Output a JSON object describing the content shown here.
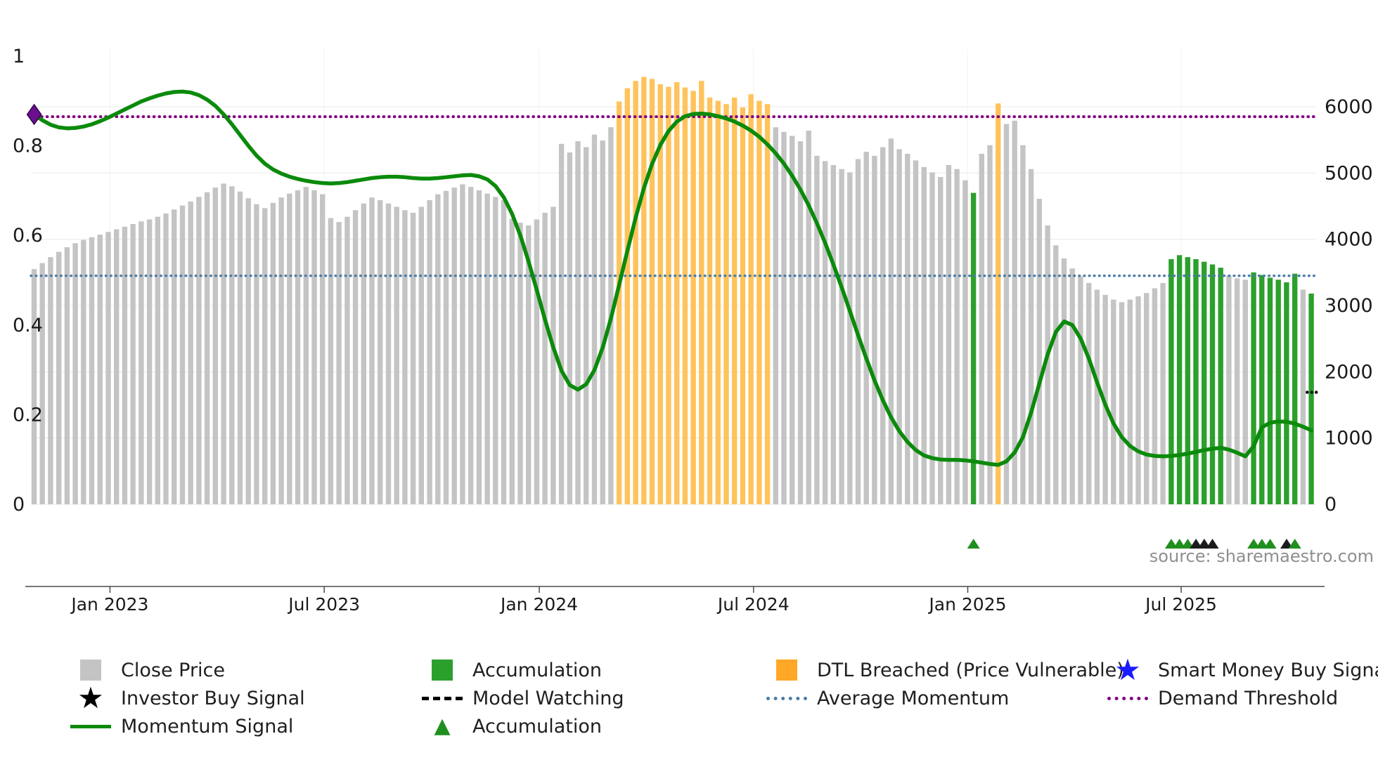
{
  "source_text": "source: sharemaestro.com",
  "colors": {
    "bar_gray": "#c4c4c4",
    "bar_green": "#2ca02c",
    "bar_orange": "#ffc35c",
    "bar_orange_legend": "#ffa726",
    "momentum_line": "#0b8a0b",
    "avg_momentum": "#4a7da8",
    "demand_threshold": "#800080",
    "diamond": "#6a0f8e",
    "diamond_edge": "#38064e",
    "triangle_green": "#1f8f1f",
    "triangle_black": "#1c1c1c",
    "star_blue": "#1a1aff",
    "star_black": "#000000",
    "axis_text": "#1a1a1a",
    "spine": "#4a4a4a",
    "grid_h": "#e9e9e9",
    "grid_v": "#f3f3f3",
    "mark_black": "#111111"
  },
  "chart_data": {
    "type": "bar",
    "overlay": "line",
    "x_unit": "weekly",
    "x_tick_labels": [
      "Jan 2023",
      "Jul 2023",
      "Jan 2024",
      "Jul 2024",
      "Jan 2025",
      "Jul 2025"
    ],
    "x_tick_weeks": [
      9.2,
      35.2,
      61.3,
      87.3,
      113.3,
      139.2
    ],
    "left_axis": {
      "series": "momentum",
      "ticks": [
        0,
        0.2,
        0.4,
        0.6,
        0.8,
        1
      ],
      "range": [
        0,
        1.09
      ]
    },
    "right_axis": {
      "series": "close_price",
      "ticks": [
        0,
        1000,
        2000,
        3000,
        4000,
        5000,
        6000
      ],
      "range": [
        0,
        6000
      ]
    },
    "close_prices": [
      3550,
      3640,
      3730,
      3810,
      3880,
      3940,
      3990,
      4030,
      4070,
      4110,
      4150,
      4190,
      4230,
      4270,
      4300,
      4340,
      4390,
      4450,
      4510,
      4570,
      4640,
      4710,
      4780,
      4840,
      4800,
      4720,
      4620,
      4530,
      4470,
      4550,
      4630,
      4690,
      4740,
      4790,
      4740,
      4680,
      4320,
      4260,
      4340,
      4440,
      4540,
      4630,
      4590,
      4540,
      4490,
      4440,
      4400,
      4490,
      4590,
      4680,
      4730,
      4780,
      4830,
      4790,
      4740,
      4690,
      4640,
      4590,
      4310,
      4250,
      4210,
      4300,
      4400,
      4490,
      5440,
      5310,
      5480,
      5390,
      5580,
      5490,
      5690,
      6080,
      6280,
      6390,
      6450,
      6420,
      6340,
      6300,
      6370,
      6290,
      6240,
      6390,
      6140,
      6090,
      6040,
      6140,
      5990,
      6190,
      6090,
      6040,
      5690,
      5620,
      5560,
      5480,
      5640,
      5260,
      5180,
      5120,
      5060,
      5010,
      5210,
      5320,
      5260,
      5390,
      5520,
      5360,
      5290,
      5190,
      5090,
      5010,
      4940,
      5120,
      5060,
      4890,
      4700,
      5290,
      5420,
      6050,
      5740,
      5790,
      5420,
      5060,
      4610,
      4210,
      3910,
      3710,
      3560,
      3440,
      3340,
      3240,
      3160,
      3090,
      3050,
      3090,
      3140,
      3190,
      3260,
      3340,
      3700,
      3760,
      3730,
      3700,
      3660,
      3620,
      3570,
      3450,
      3410,
      3390,
      3500,
      3460,
      3420,
      3390,
      3350,
      3480,
      3240,
      3180
    ],
    "orange_weeks": [
      71,
      72,
      73,
      74,
      75,
      76,
      77,
      78,
      79,
      80,
      81,
      82,
      83,
      84,
      85,
      86,
      87,
      88,
      89,
      117
    ],
    "green_weeks": [
      114,
      138,
      139,
      140,
      141,
      142,
      143,
      144,
      148,
      149,
      150,
      151,
      152,
      153,
      155
    ],
    "momentum": [
      0.87,
      0.857,
      0.847,
      0.841,
      0.839,
      0.84,
      0.843,
      0.848,
      0.855,
      0.863,
      0.872,
      0.881,
      0.89,
      0.899,
      0.906,
      0.912,
      0.917,
      0.92,
      0.921,
      0.919,
      0.913,
      0.903,
      0.889,
      0.87,
      0.848,
      0.824,
      0.8,
      0.778,
      0.76,
      0.747,
      0.738,
      0.731,
      0.726,
      0.722,
      0.719,
      0.717,
      0.716,
      0.717,
      0.719,
      0.722,
      0.725,
      0.728,
      0.73,
      0.731,
      0.731,
      0.73,
      0.728,
      0.727,
      0.727,
      0.728,
      0.73,
      0.732,
      0.734,
      0.735,
      0.732,
      0.725,
      0.71,
      0.685,
      0.648,
      0.6,
      0.542,
      0.478,
      0.412,
      0.35,
      0.298,
      0.266,
      0.256,
      0.268,
      0.3,
      0.35,
      0.415,
      0.49,
      0.566,
      0.64,
      0.706,
      0.76,
      0.802,
      0.833,
      0.854,
      0.866,
      0.871,
      0.872,
      0.87,
      0.866,
      0.861,
      0.854,
      0.845,
      0.834,
      0.82,
      0.803,
      0.783,
      0.76,
      0.733,
      0.702,
      0.667,
      0.627,
      0.583,
      0.535,
      0.484,
      0.431,
      0.377,
      0.325,
      0.276,
      0.232,
      0.194,
      0.163,
      0.139,
      0.121,
      0.109,
      0.103,
      0.1,
      0.099,
      0.099,
      0.098,
      0.096,
      0.093,
      0.09,
      0.088,
      0.096,
      0.116,
      0.15,
      0.205,
      0.27,
      0.335,
      0.385,
      0.408,
      0.4,
      0.37,
      0.325,
      0.272,
      0.222,
      0.18,
      0.15,
      0.13,
      0.118,
      0.111,
      0.108,
      0.107,
      0.108,
      0.11,
      0.113,
      0.117,
      0.121,
      0.124,
      0.126,
      0.122,
      0.115,
      0.107,
      0.13,
      0.172,
      0.182,
      0.185,
      0.184,
      0.18,
      0.173,
      0.165
    ],
    "average_momentum_value": 0.51,
    "demand_threshold_value": 0.865,
    "start_marker": {
      "week": 0,
      "momentum": 0.87
    },
    "accumulation_triangles": [
      {
        "week": 114,
        "color": "green"
      },
      {
        "week": 138,
        "color": "green"
      },
      {
        "week": 139,
        "color": "green"
      },
      {
        "week": 140,
        "color": "green"
      },
      {
        "week": 141,
        "color": "black"
      },
      {
        "week": 142,
        "color": "black"
      },
      {
        "week": 143,
        "color": "black"
      },
      {
        "week": 148,
        "color": "green"
      },
      {
        "week": 149,
        "color": "green"
      },
      {
        "week": 150,
        "color": "green"
      },
      {
        "week": 152,
        "color": "black"
      },
      {
        "week": 153,
        "color": "green"
      }
    ],
    "model_watching_marks": {
      "weeks": [
        154.5,
        155.05,
        155.6
      ],
      "momentum": 0.25
    }
  },
  "legend": {
    "items": [
      {
        "id": "close-price",
        "swatch": "square",
        "color": "bar_gray",
        "label": "Close Price"
      },
      {
        "id": "accumulation-bar",
        "swatch": "square",
        "color": "bar_green",
        "label": "Accumulation"
      },
      {
        "id": "dtl-breached",
        "swatch": "square",
        "color": "bar_orange_legend",
        "label": "DTL Breached (Price Vulnerable)"
      },
      {
        "id": "smart-money-buy",
        "swatch": "star",
        "color": "star_blue",
        "label": "Smart Money Buy Signal"
      },
      {
        "id": "investor-buy",
        "swatch": "star",
        "color": "star_black",
        "label": "Investor Buy Signal"
      },
      {
        "id": "model-watching",
        "swatch": "dashed-line",
        "color": "star_black",
        "label": "Model Watching"
      },
      {
        "id": "average-momentum",
        "swatch": "dotted-line",
        "color": "avg_momentum",
        "label": "Average Momentum"
      },
      {
        "id": "demand-threshold",
        "swatch": "dotted-line",
        "color": "demand_threshold",
        "label": "Demand Threshold"
      },
      {
        "id": "momentum-signal",
        "swatch": "solid-line",
        "color": "momentum_line",
        "label": "Momentum Signal"
      },
      {
        "id": "accumulation-triangle",
        "swatch": "triangle",
        "color": "triangle_green",
        "label": "Accumulation"
      }
    ]
  }
}
